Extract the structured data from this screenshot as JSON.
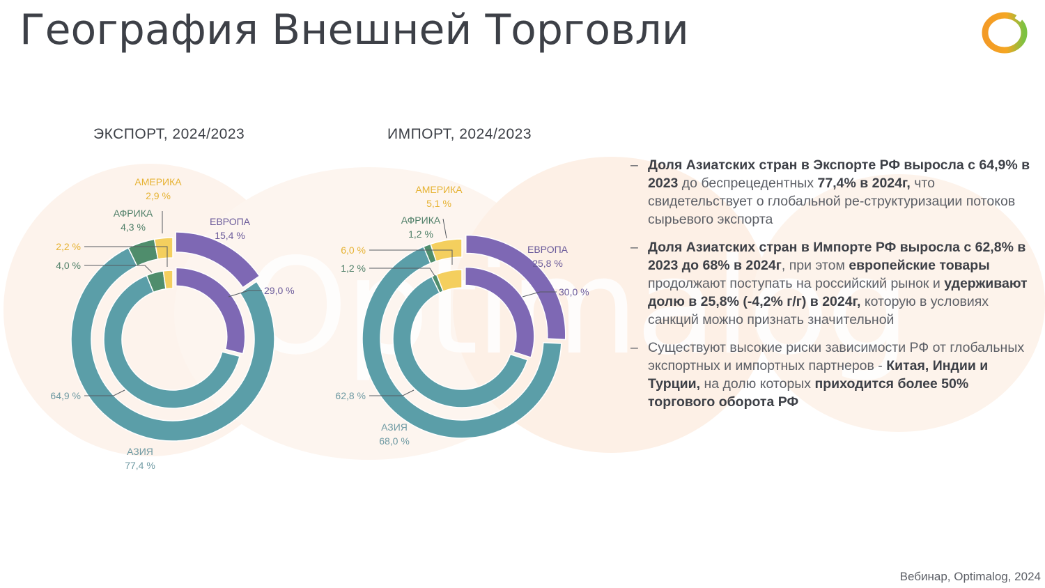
{
  "page": {
    "title": "География Внешней Торговли",
    "footer": "Вебинар, Optimalog, 2024",
    "watermark": "Optimalog"
  },
  "colors": {
    "europe": "#7e68b4",
    "asia": "#5b9ea8",
    "africa": "#4f8d6c",
    "america": "#f4cf5e",
    "text": "#3d4047",
    "muted": "#8a8d93",
    "logo_orange": "#f39a26",
    "logo_green": "#7cc242"
  },
  "chart_data": [
    {
      "type": "donut",
      "title": "ЭКСПОРТ, 2024/2023",
      "rings": [
        {
          "period": "2024",
          "ring": "outer",
          "slices": [
            {
              "label": "ЕВРОПА",
              "value": 15.4,
              "value_text": "15,4 %"
            },
            {
              "label": "АЗИЯ",
              "value": 77.4,
              "value_text": "77,4 %"
            },
            {
              "label": "АФРИКА",
              "value": 4.3,
              "value_text": "4,3 %"
            },
            {
              "label": "АМЕРИКА",
              "value": 2.9,
              "value_text": "2,9 %"
            }
          ]
        },
        {
          "period": "2023",
          "ring": "inner",
          "slices": [
            {
              "label": "ЕВРОПА",
              "value": 29.0,
              "value_text": "29,0 %"
            },
            {
              "label": "АЗИЯ",
              "value": 64.9,
              "value_text": "64,9 %"
            },
            {
              "label": "АФРИКА",
              "value": 4.0,
              "value_text": "4,0 %"
            },
            {
              "label": "АМЕРИКА",
              "value": 2.2,
              "value_text": "2,2 %"
            }
          ]
        }
      ]
    },
    {
      "type": "donut",
      "title": "ИМПОРТ, 2024/2023",
      "rings": [
        {
          "period": "2024",
          "ring": "outer",
          "slices": [
            {
              "label": "ЕВРОПА",
              "value": 25.8,
              "value_text": "25,8 %"
            },
            {
              "label": "АЗИЯ",
              "value": 68.0,
              "value_text": "68,0 %"
            },
            {
              "label": "АФРИКА",
              "value": 1.2,
              "value_text": "1,2 %"
            },
            {
              "label": "АМЕРИКА",
              "value": 5.1,
              "value_text": "5,1 %"
            }
          ]
        },
        {
          "period": "2023",
          "ring": "inner",
          "slices": [
            {
              "label": "ЕВРОПА",
              "value": 30.0,
              "value_text": "30,0 %"
            },
            {
              "label": "АЗИЯ",
              "value": 62.8,
              "value_text": "62,8 %"
            },
            {
              "label": "АФРИКА",
              "value": 1.2,
              "value_text": "1,2 %"
            },
            {
              "label": "АМЕРИКА",
              "value": 6.0,
              "value_text": "6,0 %"
            }
          ]
        }
      ]
    }
  ],
  "bullets": [
    [
      {
        "b": true,
        "t": "Доля Азиатских стран в Экспорте РФ выросла с 64,9% в 2023"
      },
      {
        "b": false,
        "t": " до беспрецедентных "
      },
      {
        "b": true,
        "t": "77,4% в 2024г,"
      },
      {
        "b": false,
        "t": " что свидетельствует о глобальной ре-структуризации потоков сырьевого экспорта"
      }
    ],
    [
      {
        "b": true,
        "t": "Доля Азиатских стран в Импорте РФ выросла с 62,8% в 2023 до 68% в 2024г"
      },
      {
        "b": false,
        "t": ", при этом "
      },
      {
        "b": true,
        "t": "европейские товары"
      },
      {
        "b": false,
        "t": " продолжают поступать на российский рынок и "
      },
      {
        "b": true,
        "t": "удерживают долю в 25,8% (-4,2% г/г) в 2024г,"
      },
      {
        "b": false,
        "t": " которую в условиях санкций можно признать значительной"
      }
    ],
    [
      {
        "b": false,
        "t": "Существуют высокие риски зависимости РФ от глобальных экспортных и импортных партнеров - "
      },
      {
        "b": true,
        "t": "Китая, Индии и Турции,"
      },
      {
        "b": false,
        "t": " на долю которых "
      },
      {
        "b": true,
        "t": "приходится более 50% торгового оборота РФ"
      }
    ]
  ]
}
